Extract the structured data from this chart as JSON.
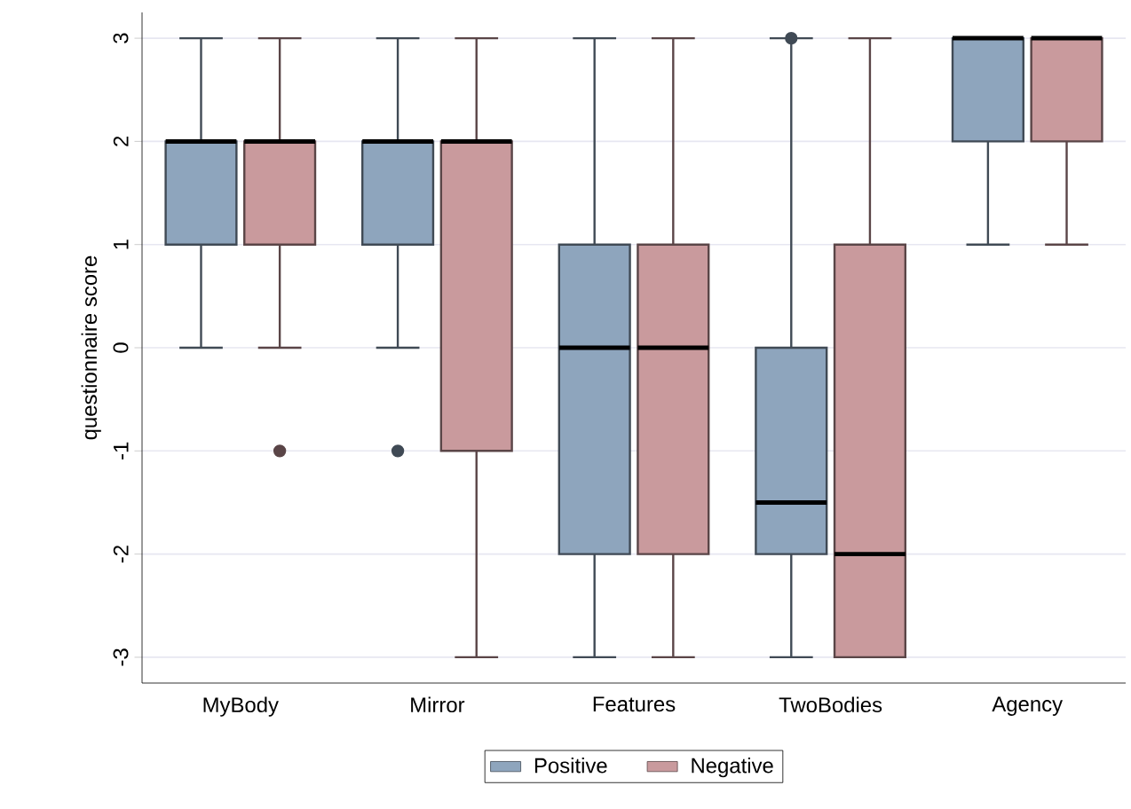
{
  "chart_data": {
    "type": "box",
    "ylabel": "questionnaire score",
    "categories": [
      "MyBody",
      "Mirror",
      "Features",
      "TwoBodies",
      "Agency"
    ],
    "series": [
      {
        "name": "Positive",
        "color": "#8ea5bd",
        "boxes": [
          {
            "low": 0,
            "q1": 1,
            "median": 2,
            "q3": 2,
            "high": 3
          },
          {
            "low": 0,
            "q1": 1,
            "median": 2,
            "q3": 2,
            "high": 3,
            "outliers": [
              -1
            ]
          },
          {
            "low": -3,
            "q1": -2,
            "median": 0,
            "q3": 1,
            "high": 3
          },
          {
            "low": -3,
            "q1": -2,
            "median": -1.5,
            "q3": 0,
            "high": 3,
            "outliers": [
              3
            ]
          },
          {
            "low": 1,
            "q1": 2,
            "median": 3,
            "q3": 3,
            "high": 3
          }
        ]
      },
      {
        "name": "Negative",
        "color": "#c99a9d",
        "boxes": [
          {
            "low": 0,
            "q1": 1,
            "median": 2,
            "q3": 2,
            "high": 3,
            "outliers": [
              -1
            ]
          },
          {
            "low": -3,
            "q1": -1,
            "median": 2,
            "q3": 2,
            "high": 3
          },
          {
            "low": -3,
            "q1": -2,
            "median": 0,
            "q3": 1,
            "high": 3
          },
          {
            "low": -3,
            "q1": -3,
            "median": -2,
            "q3": 1,
            "high": 3
          },
          {
            "low": 1,
            "q1": 2,
            "median": 3,
            "q3": 3,
            "high": 3
          }
        ]
      }
    ],
    "ylim": [
      -3.25,
      3.25
    ],
    "yticks": [
      -3,
      -2,
      -1,
      0,
      1,
      2,
      3
    ],
    "grid": "y",
    "legend": "bottom"
  }
}
